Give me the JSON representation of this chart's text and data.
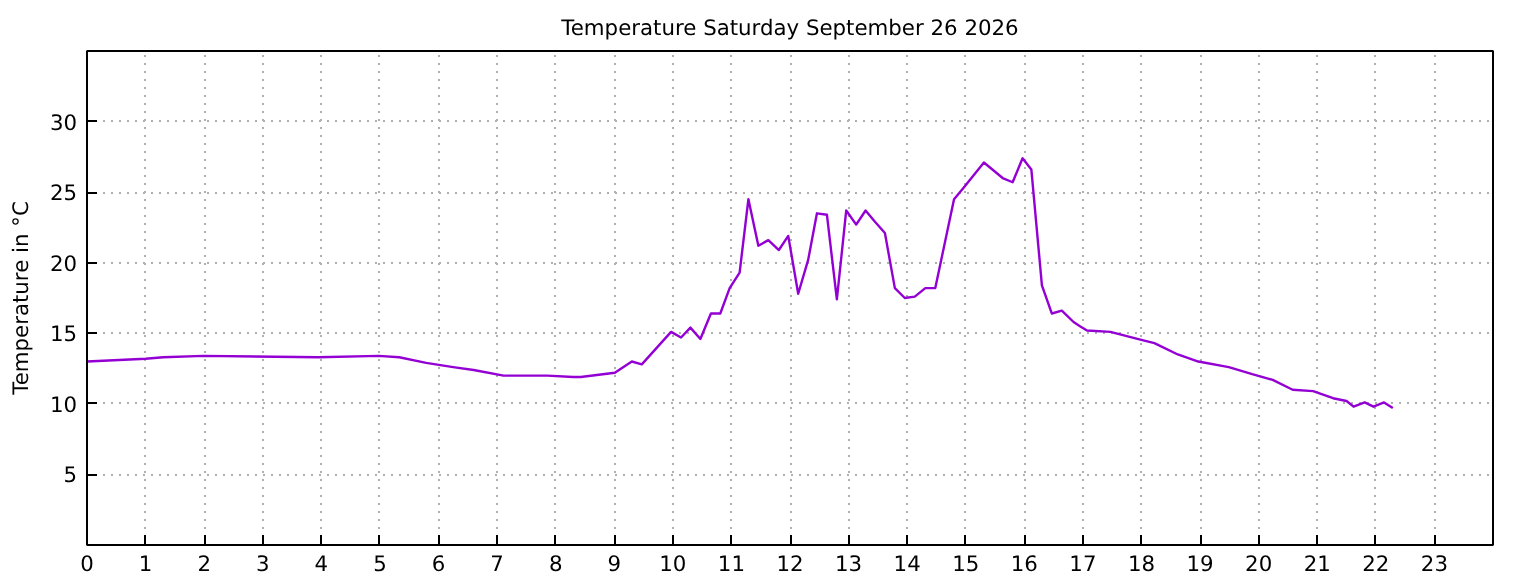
{
  "chart_data": {
    "type": "line",
    "title": "Temperature Saturday September 26 2026",
    "ylabel": "Temperature in °C",
    "xlim": [
      0,
      24
    ],
    "xticks": [
      0,
      1,
      2,
      3,
      4,
      5,
      6,
      7,
      8,
      9,
      10,
      11,
      12,
      13,
      14,
      15,
      16,
      17,
      18,
      19,
      20,
      21,
      22,
      23
    ],
    "ylim": [
      0,
      35
    ],
    "yticks": [
      5,
      10,
      15,
      20,
      25,
      30
    ],
    "grid": true,
    "line_style": "solid",
    "series": [
      {
        "color": "#9400d3",
        "x": [
          0,
          1.0,
          1.3,
          1.99,
          3.95,
          4.98,
          5.33,
          5.79,
          6.25,
          6.6,
          7.11,
          7.4,
          7.86,
          8.3,
          8.43,
          9.01,
          9.3,
          9.47,
          9.97,
          10.14,
          10.3,
          10.47,
          10.65,
          10.81,
          10.97,
          11.14,
          11.29,
          11.46,
          11.63,
          11.81,
          11.97,
          12.14,
          12.31,
          12.46,
          12.63,
          12.8,
          12.96,
          13.13,
          13.29,
          13.45,
          13.62,
          13.79,
          13.96,
          14.13,
          14.31,
          14.48,
          14.8,
          14.96,
          15.31,
          15.63,
          15.8,
          15.97,
          16.12,
          16.3,
          16.47,
          16.64,
          16.84,
          16.95,
          17.07,
          17.47,
          17.93,
          18.22,
          18.62,
          18.97,
          19.49,
          19.89,
          20.24,
          20.58,
          20.93,
          21.27,
          21.5,
          21.62,
          21.81,
          21.96,
          22.14,
          22.29
        ],
        "values": [
          13.0,
          13.2,
          13.3,
          13.4,
          13.3,
          13.4,
          13.3,
          12.9,
          12.6,
          12.4,
          12.0,
          12.0,
          12.0,
          11.9,
          11.9,
          12.2,
          13.0,
          12.8,
          15.1,
          14.7,
          15.4,
          14.6,
          16.4,
          16.4,
          18.2,
          19.3,
          24.5,
          21.2,
          21.6,
          20.9,
          21.9,
          17.8,
          20.2,
          23.5,
          23.4,
          17.4,
          23.7,
          22.7,
          23.7,
          22.9,
          22.1,
          18.2,
          17.5,
          17.6,
          18.2,
          18.2,
          24.5,
          25.3,
          27.1,
          26.0,
          25.7,
          27.4,
          26.6,
          18.4,
          16.4,
          16.6,
          15.8,
          15.5,
          15.2,
          15.1,
          14.6,
          14.3,
          13.5,
          13.0,
          12.6,
          12.1,
          11.7,
          11.0,
          10.9,
          10.4,
          10.2,
          9.8,
          10.1,
          9.8,
          10.1,
          9.7
        ]
      }
    ]
  }
}
